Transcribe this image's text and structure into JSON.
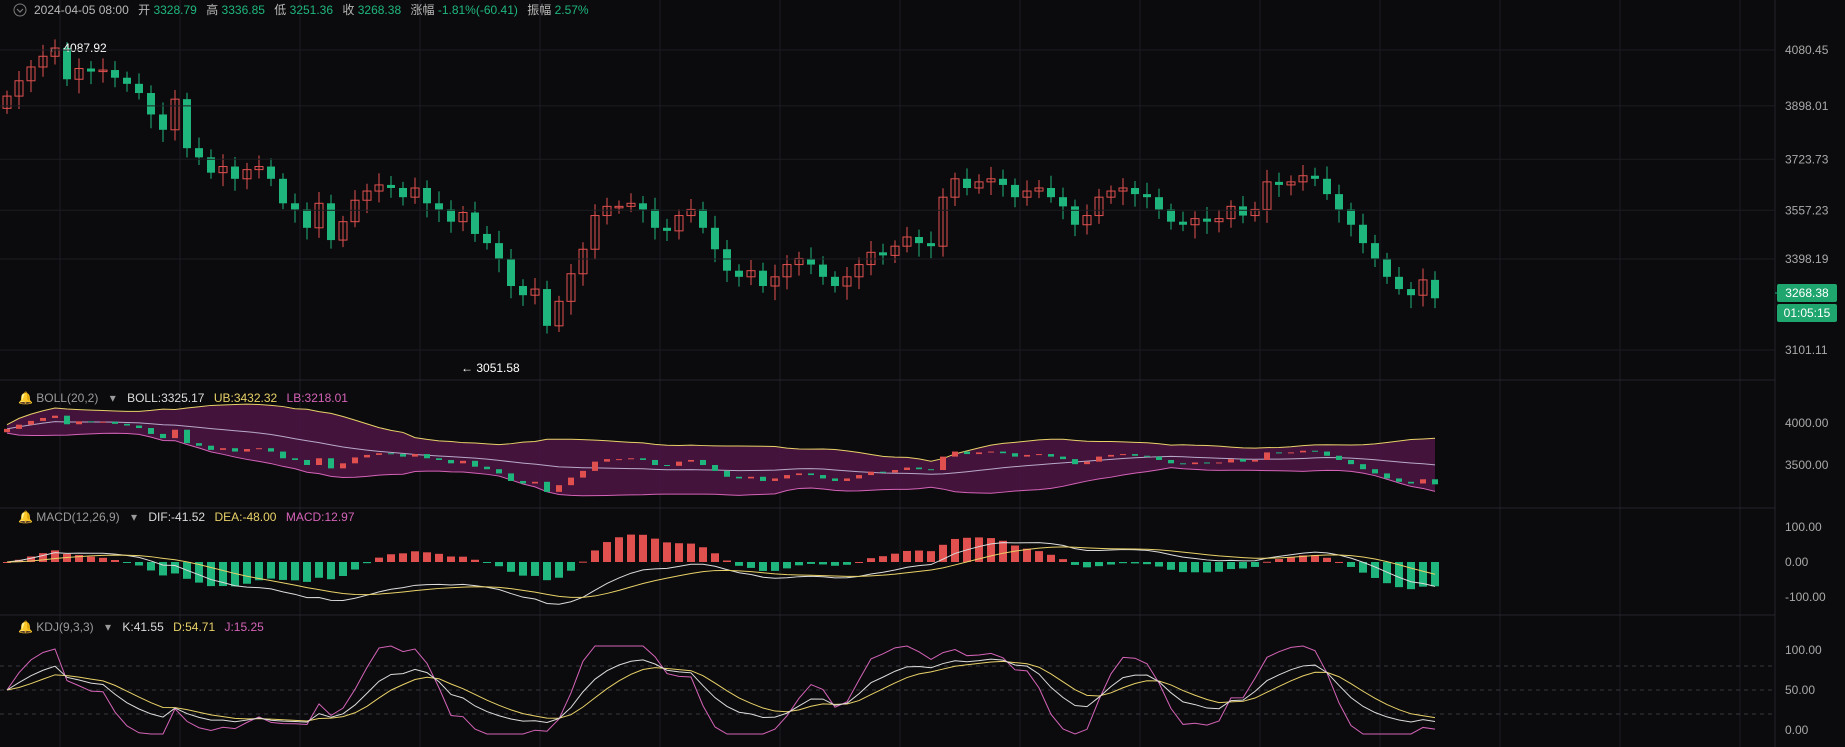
{
  "header": {
    "date": "2024-04-05 08:00",
    "open_label": "开",
    "open": "3328.79",
    "high_label": "高",
    "high": "3336.85",
    "low_label": "低",
    "low": "3251.36",
    "close_label": "收",
    "close": "3268.38",
    "change_label": "涨幅",
    "change": "-1.81%(-60.41)",
    "amplitude_label": "振幅",
    "amplitude": "2.57%"
  },
  "colors": {
    "up": "#e0504f",
    "down": "#1fb67d",
    "bg": "#0b0b0d",
    "yellow": "#e8d168",
    "magenta": "#d463b7",
    "white": "#dcdcdc",
    "boll_fill": "#4d1545"
  },
  "price_axis": {
    "ticks": [
      "4080.45",
      "3898.01",
      "3723.73",
      "3557.23",
      "3398.19",
      "3101.11"
    ],
    "ticks_value": [
      4080.45,
      3898.01,
      3723.73,
      3557.23,
      3398.19,
      3101.11
    ]
  },
  "last_price": {
    "value": "3268.38",
    "countdown": "01:05:15"
  },
  "annotations": {
    "max": "4087.92",
    "min": "3051.58"
  },
  "boll": {
    "title": "BOLL(20,2)",
    "mid_label": "BOLL:3325.17",
    "ub_label": "UB:3432.32",
    "lb_label": "LB:3218.01",
    "axis": [
      "4000.00",
      "3500.00"
    ],
    "axis_value": [
      4000,
      3500
    ]
  },
  "macd": {
    "title": "MACD(12,26,9)",
    "dif_label": "DIF:-41.52",
    "dea_label": "DEA:-48.00",
    "macd_label": "MACD:12.97",
    "axis": [
      "100.00",
      "0.00",
      "-100.00"
    ],
    "axis_value": [
      100,
      0,
      -100
    ]
  },
  "kdj": {
    "title": "KDJ(9,3,3)",
    "k_label": "K:41.55",
    "d_label": "D:54.71",
    "j_label": "J:15.25",
    "axis": [
      "100.00",
      "50.00",
      "0.00"
    ],
    "axis_value": [
      100,
      50,
      0
    ]
  },
  "chart_data": {
    "type": "candlestick",
    "x_index_count": 120,
    "closes": [
      3930,
      3980,
      4025,
      4060,
      4087,
      3985,
      4020,
      4010,
      4015,
      3990,
      3970,
      3940,
      3870,
      3820,
      3920,
      3760,
      3730,
      3680,
      3700,
      3660,
      3690,
      3700,
      3660,
      3580,
      3560,
      3500,
      3580,
      3460,
      3520,
      3590,
      3620,
      3640,
      3630,
      3600,
      3630,
      3580,
      3560,
      3520,
      3550,
      3480,
      3450,
      3400,
      3310,
      3280,
      3300,
      3180,
      3260,
      3350,
      3430,
      3540,
      3570,
      3570,
      3580,
      3560,
      3500,
      3490,
      3540,
      3560,
      3500,
      3430,
      3360,
      3340,
      3360,
      3310,
      3340,
      3380,
      3400,
      3380,
      3340,
      3310,
      3340,
      3380,
      3420,
      3410,
      3440,
      3470,
      3450,
      3440,
      3600,
      3660,
      3630,
      3650,
      3660,
      3640,
      3600,
      3620,
      3630,
      3600,
      3570,
      3510,
      3540,
      3600,
      3620,
      3630,
      3610,
      3600,
      3560,
      3520,
      3510,
      3530,
      3520,
      3530,
      3570,
      3540,
      3560,
      3650,
      3640,
      3650,
      3670,
      3660,
      3610,
      3560,
      3510,
      3450,
      3400,
      3340,
      3300,
      3280,
      3330,
      3270
    ]
  }
}
